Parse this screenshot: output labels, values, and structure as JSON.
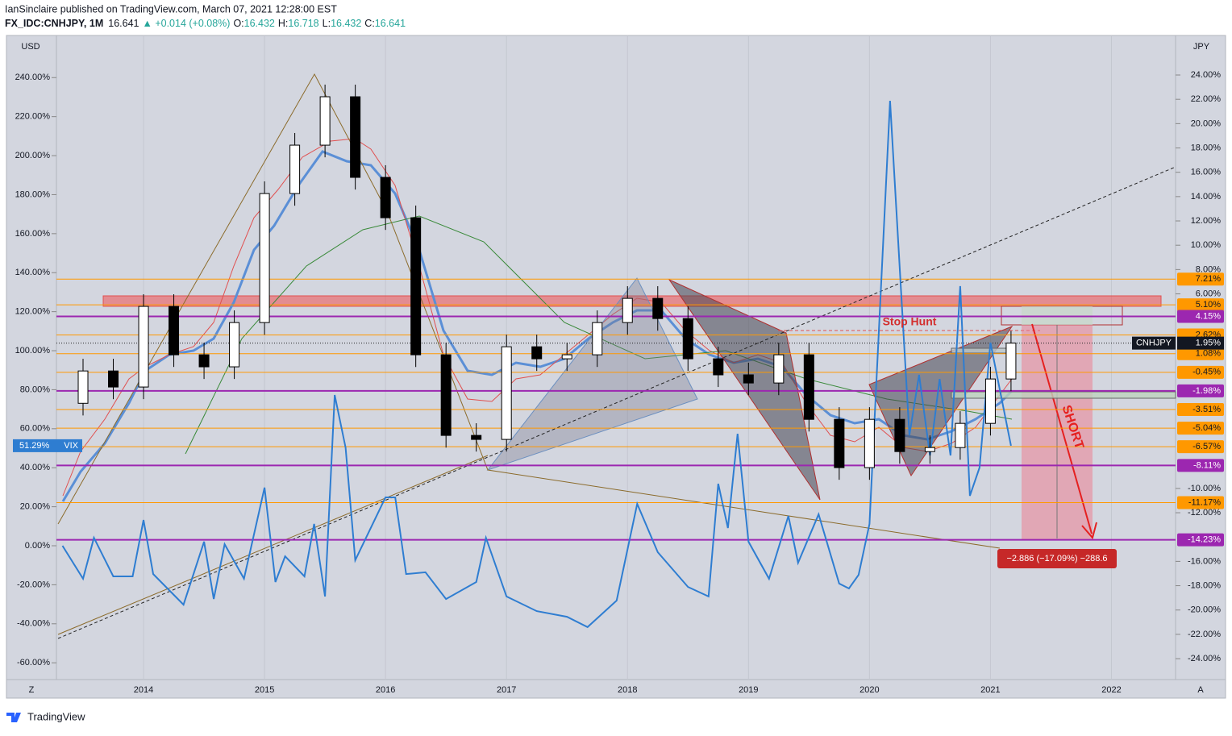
{
  "header": {
    "author_line": "IanSinclaire published on TradingView.com, March 07, 2021 12:28:00 EST",
    "symbol": "FX_IDC:CNHJPY, 1M",
    "last": 16.641,
    "change": "▲ +0.014 (+0.08%)",
    "ohlc": [
      {
        "key": "O:",
        "value": 16.432
      },
      {
        "key": "H:",
        "value": 16.718
      },
      {
        "key": "L:",
        "value": 16.432
      },
      {
        "key": "C:",
        "value": 16.641
      }
    ]
  },
  "chart_data": {
    "type": "candlestick",
    "name": "CNHJPY",
    "axis": "y2",
    "up_color": "#ffffff",
    "down_color": "#000000",
    "x": [
      2013.5,
      2013.75,
      2014,
      2014.25,
      2014.5,
      2014.75,
      2015,
      2015.25,
      2015.5,
      2015.75,
      2016,
      2016.25,
      2016.5,
      2016.75,
      2017,
      2017.25,
      2017.5,
      2017.75,
      2018,
      2018.25,
      2018.5,
      2018.75,
      2019,
      2019.25,
      2019.5,
      2019.75,
      2020,
      2020.25,
      2020.5,
      2020.75,
      2021,
      2021.17
    ],
    "open": [
      -3,
      -0.34,
      -1.66,
      4.97,
      0.99,
      0,
      3.64,
      14.25,
      18.23,
      22.21,
      15.58,
      12.26,
      0.99,
      -5.64,
      -5.97,
      1.65,
      0.66,
      0.99,
      3.64,
      5.63,
      3.97,
      0.66,
      -0.66,
      -1.33,
      0.99,
      -4.32,
      -8.29,
      -4.32,
      -6.97,
      -6.64,
      -4.65,
      -1.0
    ],
    "high": [
      0.66,
      0.66,
      5.97,
      5.97,
      1.99,
      4.64,
      15.25,
      19.23,
      23.21,
      23.21,
      16.58,
      13.26,
      1.99,
      -4.64,
      2.65,
      2.65,
      1.99,
      4.64,
      6.63,
      6.63,
      4.97,
      1.66,
      0.34,
      1.99,
      1.99,
      -3.32,
      -3.32,
      -3.32,
      -5.64,
      -3.65,
      0,
      2.95
    ],
    "low": [
      -4,
      -2.66,
      -2.66,
      -0.01,
      -1,
      -1,
      2.64,
      13.25,
      17.23,
      14.58,
      11.26,
      -0.01,
      -6.64,
      -6.97,
      -6.97,
      -0.34,
      -0.34,
      -0.01,
      2.64,
      2.97,
      -0.34,
      -1.66,
      -2.33,
      -2.33,
      -5.32,
      -9.29,
      -9.29,
      -7.97,
      -7.97,
      -7.64,
      -5.65,
      -2
    ],
    "close": [
      -0.34,
      -1.66,
      4.97,
      0.99,
      0,
      3.64,
      14.25,
      18.23,
      22.21,
      15.58,
      12.26,
      0.99,
      -5.64,
      -5.97,
      1.65,
      0.66,
      0.99,
      3.64,
      5.63,
      3.97,
      0.66,
      -0.66,
      -1.33,
      0.99,
      -4.32,
      -8.29,
      -4.32,
      -6.97,
      -6.64,
      -4.65,
      -1.0,
      1.95
    ],
    "value_labels": [
      null,
      null,
      null,
      null,
      null,
      null,
      null,
      null,
      null,
      null,
      null,
      null,
      null,
      null,
      null,
      null,
      null,
      null,
      null,
      null,
      null,
      null,
      null,
      null,
      null,
      null,
      null,
      null,
      null,
      null,
      null,
      "1.95%"
    ],
    "overlays": [
      {
        "type": "line",
        "name": "VIX",
        "color": "#2e7dd1",
        "x": [
          2013.33,
          2013.5,
          2013.59,
          2013.75,
          2013.91,
          2014.0,
          2014.08,
          2014.33,
          2014.5,
          2014.58,
          2014.67,
          2014.83,
          2015.0,
          2015.09,
          2015.17,
          2015.33,
          2015.41,
          2015.5,
          2015.58,
          2015.67,
          2015.75,
          2016.0,
          2016.08,
          2016.17,
          2016.33,
          2016.5,
          2016.75,
          2016.83,
          2017.0,
          2017.25,
          2017.5,
          2017.67,
          2017.91,
          2018.08,
          2018.25,
          2018.5,
          2018.67,
          2018.75,
          2018.83,
          2018.91,
          2019.0,
          2019.17,
          2019.33,
          2019.41,
          2019.58,
          2019.75,
          2019.83,
          2019.91,
          2020.0,
          2020.17,
          2020.33,
          2020.41,
          2020.5,
          2020.58,
          2020.67,
          2020.75,
          2020.83,
          2020.91,
          2021.0,
          2021.17
        ],
        "values": [
          0,
          -16.9,
          4.1,
          -15.7,
          -15.7,
          13.2,
          -14.5,
          -30.2,
          2.1,
          -27.3,
          0.8,
          -16.9,
          29.8,
          -18.6,
          -5.4,
          -15.7,
          11.2,
          -26.0,
          77.3,
          50.4,
          -7.4,
          24.8,
          24.8,
          -14.5,
          -13.6,
          -27.3,
          -18.6,
          4.1,
          -26.0,
          -33.5,
          -36.4,
          -41.7,
          -28.1,
          21.5,
          -3.3,
          -21.1,
          -26.0,
          31.8,
          9.1,
          57.4,
          2.1,
          -16.9,
          15.3,
          -8.7,
          16.1,
          -19.4,
          -21.9,
          -14.9,
          11.2,
          228.1,
          56.6,
          87.6,
          46.3,
          85.5,
          46.3,
          133.1,
          25.6,
          40.1,
          104.1,
          51.29
        ],
        "value_labels": [
          null,
          null,
          null,
          null,
          null,
          null,
          null,
          null,
          null,
          null,
          null,
          null,
          null,
          null,
          null,
          null,
          null,
          null,
          null,
          null,
          null,
          null,
          null,
          null,
          null,
          null,
          null,
          null,
          null,
          null,
          null,
          null,
          null,
          null,
          null,
          null,
          null,
          null,
          null,
          null,
          null,
          null,
          null,
          null,
          null,
          null,
          null,
          null,
          null,
          null,
          null,
          null,
          null,
          null,
          null,
          null,
          null,
          null,
          null,
          "51.29%"
        ]
      }
    ],
    "levels": [
      {
        "value": 7.21,
        "label": "7.21%",
        "color": "#ff9800"
      },
      {
        "value": 5.1,
        "label": "5.10%",
        "color": "#ff9800"
      },
      {
        "value": 4.15,
        "label": "4.15%",
        "color": "#9c27b0"
      },
      {
        "value": 2.62,
        "label": "2.62%",
        "color": "#ff9800"
      },
      {
        "value": 1.08,
        "label": "1.08%",
        "color": "#ff9800"
      },
      {
        "value": -0.45,
        "label": "-0.45%",
        "color": "#ff9800"
      },
      {
        "value": -1.98,
        "label": "-1.98%",
        "color": "#9c27b0"
      },
      {
        "value": -3.51,
        "label": "-3.51%",
        "color": "#ff9800"
      },
      {
        "value": -5.04,
        "label": "-5.04%",
        "color": "#ff9800"
      },
      {
        "value": -6.57,
        "label": "-6.57%",
        "color": "#ff9800"
      },
      {
        "value": -8.11,
        "label": "-8.11%",
        "color": "#9c27b0"
      },
      {
        "value": -11.17,
        "label": "-11.17%",
        "color": "#ff9800"
      },
      {
        "value": -14.23,
        "label": "-14.23%",
        "color": "#9c27b0"
      }
    ],
    "xlim": [
      2013.28,
      2022.53
    ],
    "xticks": [
      2014,
      2015,
      2016,
      2017,
      2018,
      2019,
      2020,
      2021,
      2022
    ],
    "ylim": [
      -68.6,
      261.6
    ],
    "y_unit": "USD",
    "yticks": [
      {
        "value": 240,
        "label": "240.00%"
      },
      {
        "value": 220,
        "label": "220.00%"
      },
      {
        "value": 200,
        "label": "200.00%"
      },
      {
        "value": 180,
        "label": "180.00%"
      },
      {
        "value": 160,
        "label": "160.00%"
      },
      {
        "value": 140,
        "label": "140.00%"
      },
      {
        "value": 120,
        "label": "120.00%"
      },
      {
        "value": 100,
        "label": "100.00%"
      },
      {
        "value": 80,
        "label": "80.00%"
      },
      {
        "value": 60,
        "label": "60.00%"
      },
      {
        "value": 40,
        "label": "40.00%"
      },
      {
        "value": 20,
        "label": "20.00%"
      },
      {
        "value": 0,
        "label": "0.00%"
      },
      {
        "value": -20,
        "label": "-20.00%"
      },
      {
        "value": -40,
        "label": "-40.00%"
      },
      {
        "value": -60,
        "label": "-60.00%"
      }
    ],
    "y2lim": [
      -25.72,
      27.25
    ],
    "y2_unit": "JPY",
    "y2ticks": [
      {
        "value": 24,
        "label": "24.00%"
      },
      {
        "value": 22,
        "label": "22.00%"
      },
      {
        "value": 20,
        "label": "20.00%"
      },
      {
        "value": 18,
        "label": "18.00%"
      },
      {
        "value": 16,
        "label": "16.00%"
      },
      {
        "value": 14,
        "label": "14.00%"
      },
      {
        "value": 12,
        "label": "12.00%"
      },
      {
        "value": 10,
        "label": "10.00%"
      },
      {
        "value": 8,
        "label": "8.00%"
      },
      {
        "value": 6,
        "label": "6.00%"
      },
      {
        "value": -10,
        "label": "-10.00%"
      },
      {
        "value": -12,
        "label": "-12.00%"
      },
      {
        "value": -16,
        "label": "-16.00%"
      },
      {
        "value": -18,
        "label": "-18.00%"
      },
      {
        "value": -20,
        "label": "-20.00%"
      },
      {
        "value": -22,
        "label": "-22.00%"
      },
      {
        "value": -24,
        "label": "-24.00%"
      }
    ],
    "grid": true,
    "annotations": {
      "stop_hunt": "Stop Hunt",
      "short": "SHORT",
      "measure": "−2.886 (−17.09%) −288.6"
    },
    "scale_buttons": [
      "Z",
      "A"
    ]
  },
  "footer": {
    "brand": "TradingView"
  }
}
